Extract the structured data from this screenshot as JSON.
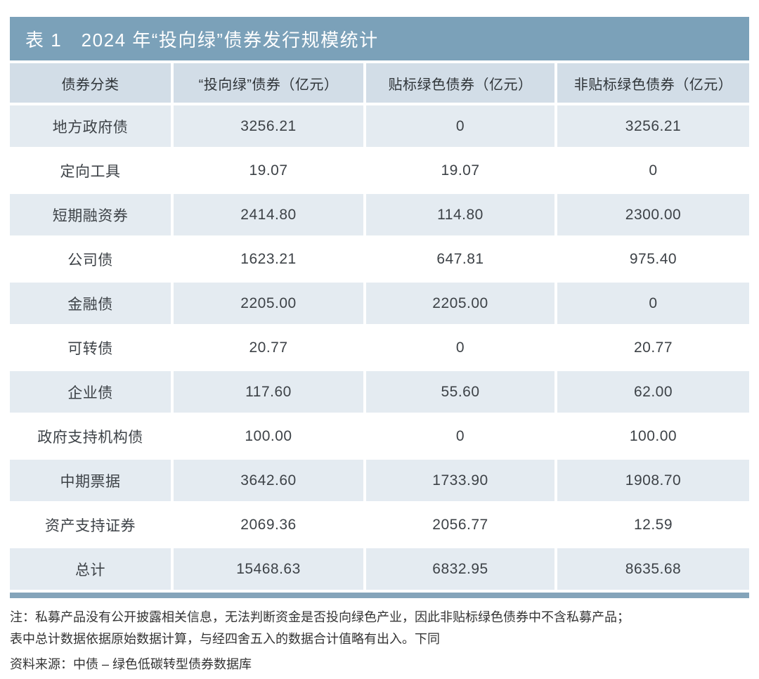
{
  "table": {
    "title": "表 1　2024 年“投向绿”债券发行规模统计",
    "columns": [
      "债券分类",
      "“投向绿”债券（亿元）",
      "贴标绿色债券（亿元）",
      "非贴标绿色债券（亿元）"
    ],
    "rows": [
      {
        "label": "地方政府债",
        "values": [
          "3256.21",
          "0",
          "3256.21"
        ]
      },
      {
        "label": "定向工具",
        "values": [
          "19.07",
          "19.07",
          "0"
        ]
      },
      {
        "label": "短期融资券",
        "values": [
          "2414.80",
          "114.80",
          "2300.00"
        ]
      },
      {
        "label": "公司债",
        "values": [
          "1623.21",
          "647.81",
          "975.40"
        ]
      },
      {
        "label": "金融债",
        "values": [
          "2205.00",
          "2205.00",
          "0"
        ]
      },
      {
        "label": "可转债",
        "values": [
          "20.77",
          "0",
          "20.77"
        ]
      },
      {
        "label": "企业债",
        "values": [
          "117.60",
          "55.60",
          "62.00"
        ]
      },
      {
        "label": "政府支持机构债",
        "values": [
          "100.00",
          "0",
          "100.00"
        ]
      },
      {
        "label": "中期票据",
        "values": [
          "3642.60",
          "1733.90",
          "1908.70"
        ]
      },
      {
        "label": "资产支持证券",
        "values": [
          "2069.36",
          "2056.77",
          "12.59"
        ]
      },
      {
        "label": "总计",
        "values": [
          "15468.63",
          "6832.95",
          "8635.68"
        ],
        "is_total": true
      }
    ],
    "colors": {
      "title_bar": "#7ba1b9",
      "header_row": "#d2dde7",
      "shaded_row": "#e4ebf1",
      "plain_row": "#ffffff",
      "bottom_bar": "#84a4ba",
      "title_text": "#ffffff",
      "cell_text": "#3d4247"
    }
  },
  "notes": {
    "line1": "注：私募产品没有公开披露相关信息，无法判断资金是否投向绿色产业，因此非贴标绿色债券中不含私募产品；",
    "line2": "表中总计数据依据原始数据计算，与经四舍五入的数据合计值略有出入。下同",
    "source": "资料来源：中债 – 绿色低碳转型债券数据库"
  }
}
